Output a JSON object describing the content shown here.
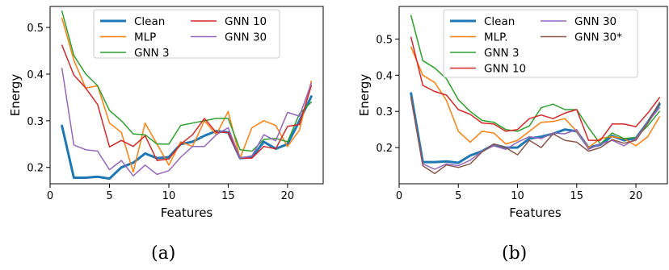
{
  "chart_data": [
    {
      "panel": "(a)",
      "type": "line",
      "xlabel": "Features",
      "ylabel": "Energy",
      "xlim": [
        0,
        23
      ],
      "ylim": [
        0.165,
        0.545
      ],
      "xticks": [
        0,
        5,
        10,
        15,
        20
      ],
      "yticks": [
        0.2,
        0.3,
        0.4,
        0.5
      ],
      "ytick_labels": [
        "0.2",
        "0.3",
        "0.4",
        "0.5"
      ],
      "grid": false,
      "legend": {
        "placement": "top-center",
        "columns": 2
      },
      "x": [
        1,
        2,
        3,
        4,
        5,
        6,
        7,
        8,
        9,
        10,
        11,
        12,
        13,
        14,
        15,
        16,
        17,
        18,
        19,
        20,
        21,
        22
      ],
      "series": [
        {
          "name": "Clean",
          "color": "#1f77b4",
          "width": 3,
          "values": [
            0.289,
            0.178,
            0.178,
            0.18,
            0.176,
            0.2,
            0.21,
            0.23,
            0.22,
            0.222,
            0.25,
            0.255,
            0.268,
            0.278,
            0.275,
            0.22,
            0.222,
            0.255,
            0.24,
            0.25,
            0.3,
            0.352
          ]
        },
        {
          "name": "MLP",
          "color": "#ff7f0e",
          "width": 1.5,
          "values": [
            0.52,
            0.43,
            0.37,
            0.375,
            0.295,
            0.275,
            0.19,
            0.295,
            0.25,
            0.205,
            0.255,
            0.245,
            0.3,
            0.27,
            0.32,
            0.22,
            0.285,
            0.3,
            0.29,
            0.245,
            0.28,
            0.385
          ]
        },
        {
          "name": "GNN 3",
          "color": "#2ca02c",
          "width": 1.5,
          "values": [
            0.535,
            0.44,
            0.4,
            0.375,
            0.322,
            0.3,
            0.272,
            0.27,
            0.25,
            0.25,
            0.29,
            0.295,
            0.3,
            0.305,
            0.305,
            0.238,
            0.235,
            0.26,
            0.262,
            0.255,
            0.315,
            0.34
          ]
        },
        {
          "name": "GNN 10",
          "color": "#d62728",
          "width": 1.5,
          "values": [
            0.462,
            0.398,
            0.37,
            0.335,
            0.244,
            0.258,
            0.245,
            0.268,
            0.215,
            0.218,
            0.25,
            0.27,
            0.305,
            0.275,
            0.275,
            0.22,
            0.22,
            0.245,
            0.24,
            0.288,
            0.292,
            0.375
          ]
        },
        {
          "name": "GNN 30",
          "color": "#9467bd",
          "width": 1.5,
          "values": [
            0.412,
            0.248,
            0.238,
            0.235,
            0.195,
            0.215,
            0.182,
            0.205,
            0.185,
            0.193,
            0.222,
            0.245,
            0.245,
            0.27,
            0.285,
            0.22,
            0.225,
            0.27,
            0.257,
            0.318,
            0.31,
            0.38
          ]
        }
      ]
    },
    {
      "panel": "(b)",
      "type": "line",
      "xlabel": "Features",
      "ylabel": "Energy",
      "xlim": [
        0,
        23
      ],
      "ylim": [
        0.1,
        0.59
      ],
      "xticks": [
        0,
        5,
        10,
        15,
        20
      ],
      "yticks": [
        0.2,
        0.3,
        0.4,
        0.5
      ],
      "ytick_labels": [
        "0.2",
        "0.3",
        "0.4",
        "0.5"
      ],
      "grid": false,
      "legend": {
        "placement": "top-center",
        "columns": 2
      },
      "x": [
        1,
        2,
        3,
        4,
        5,
        6,
        7,
        8,
        9,
        10,
        11,
        12,
        13,
        14,
        15,
        16,
        17,
        18,
        19,
        20,
        21,
        22
      ],
      "series": [
        {
          "name": "Clean",
          "color": "#1f77b4",
          "width": 3,
          "values": [
            0.35,
            0.16,
            0.16,
            0.162,
            0.158,
            0.178,
            0.19,
            0.208,
            0.2,
            0.2,
            0.225,
            0.23,
            0.238,
            0.25,
            0.245,
            0.2,
            0.208,
            0.232,
            0.22,
            0.226,
            0.27,
            0.32
          ]
        },
        {
          "name": "MLP.",
          "color": "#ff7f0e",
          "width": 1.5,
          "values": [
            0.478,
            0.4,
            0.38,
            0.33,
            0.245,
            0.215,
            0.245,
            0.24,
            0.21,
            0.22,
            0.245,
            0.27,
            0.272,
            0.28,
            0.245,
            0.2,
            0.225,
            0.23,
            0.225,
            0.205,
            0.23,
            0.285
          ]
        },
        {
          "name": "GNN 3",
          "color": "#2ca02c",
          "width": 1.5,
          "values": [
            0.565,
            0.44,
            0.42,
            0.39,
            0.332,
            0.3,
            0.275,
            0.27,
            0.25,
            0.245,
            0.26,
            0.31,
            0.32,
            0.305,
            0.305,
            0.255,
            0.21,
            0.24,
            0.225,
            0.228,
            0.26,
            0.3
          ]
        },
        {
          "name": "GNN 10",
          "color": "#d62728",
          "width": 1.5,
          "values": [
            0.505,
            0.372,
            0.355,
            0.345,
            0.305,
            0.292,
            0.268,
            0.265,
            0.245,
            0.25,
            0.28,
            0.29,
            0.28,
            0.295,
            0.305,
            0.22,
            0.22,
            0.265,
            0.265,
            0.258,
            0.295,
            0.338
          ]
        },
        {
          "name": "GNN 30",
          "color": "#9467bd",
          "width": 1.5,
          "values": [
            0.335,
            0.155,
            0.14,
            0.155,
            0.15,
            0.165,
            0.19,
            0.205,
            0.195,
            0.215,
            0.23,
            0.225,
            0.24,
            0.238,
            0.25,
            0.195,
            0.21,
            0.22,
            0.205,
            0.225,
            0.27,
            0.31
          ]
        },
        {
          "name": "GNN 30*",
          "color": "#8c564b",
          "width": 1.5,
          "values": [
            0.34,
            0.15,
            0.128,
            0.152,
            0.145,
            0.155,
            0.188,
            0.21,
            0.2,
            0.18,
            0.22,
            0.2,
            0.238,
            0.22,
            0.215,
            0.19,
            0.2,
            0.222,
            0.212,
            0.22,
            0.268,
            0.325
          ]
        }
      ]
    }
  ],
  "captions": [
    "(a)",
    "(b)"
  ]
}
